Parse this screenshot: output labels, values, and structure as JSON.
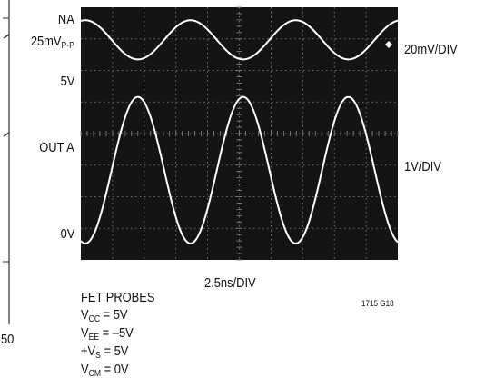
{
  "chart_data": {
    "type": "line",
    "title": "",
    "xlabel": "2.5ns/DIV",
    "ylabel": "",
    "grid": true,
    "divisions": {
      "x": 10,
      "y": 8
    },
    "series": [
      {
        "label": "NA",
        "amplitude_label": "25mV",
        "amplitude_label_sub": "P-P",
        "scale_label": "20mV/DIV",
        "period_ns": 8.3,
        "phase_ns": 0.35,
        "amplitude_div": 0.62,
        "center_div": 6.97,
        "color": "#ffffff"
      },
      {
        "label": "OUT A",
        "level_high": "5V",
        "level_low": "0V",
        "scale_label": "1V/DIV",
        "period_ns": 8.3,
        "phase_ns": 0.35,
        "high_div": 5.16,
        "low_div": 0.52,
        "color": "#ffffff"
      }
    ]
  },
  "conditions": {
    "probes": "FET PROBES",
    "vcc": {
      "prefix": "V",
      "sub": "CC",
      "value": " = 5V"
    },
    "vee": {
      "prefix": "V",
      "sub": "EE",
      "value": " = –5V"
    },
    "vs": {
      "prefix": "+V",
      "sub": "S",
      "value": " = 5V"
    },
    "vcm": {
      "prefix": "V",
      "sub": "CM",
      "value": " = 0V"
    }
  },
  "figure_id": "1715 G18",
  "adjacent_fragment": {
    "tick_label": "50"
  },
  "colors": {
    "screen": "#141414",
    "grid": "#8a8a8a",
    "trace": "#ffffff",
    "text": "#111111"
  }
}
